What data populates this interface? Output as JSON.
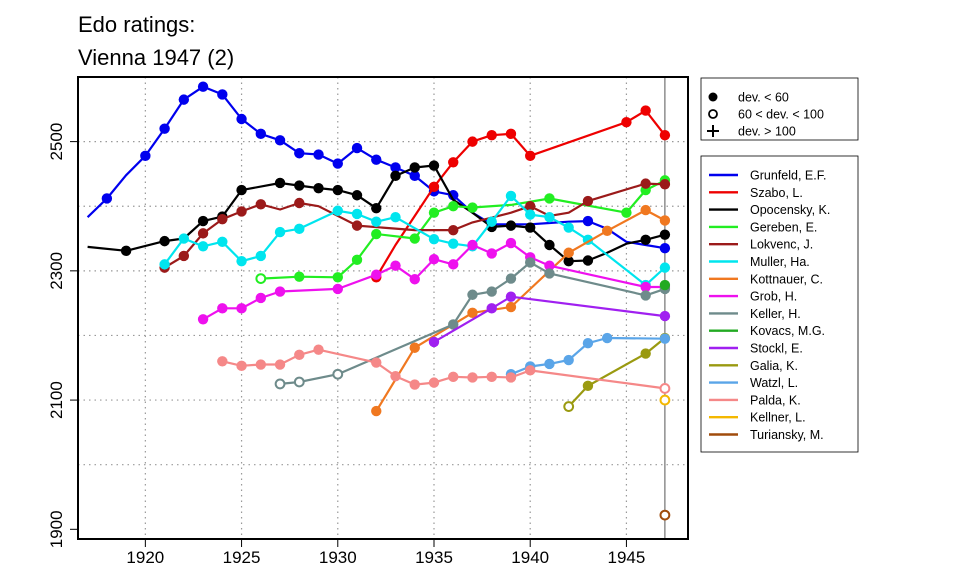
{
  "chart_data": {
    "type": "line",
    "title": [
      "Edo ratings:",
      "Vienna 1947 (2)"
    ],
    "xlabel": "",
    "ylabel": "",
    "xlim": [
      1916.5,
      1948.2
    ],
    "ylim": [
      1885,
      2600
    ],
    "xticks": [
      1920,
      1925,
      1930,
      1935,
      1940,
      1945
    ],
    "yticks": [
      1900,
      2100,
      2300,
      2500
    ],
    "grid_y": [
      2000,
      2100,
      2200,
      2300,
      2400,
      2500,
      2600
    ],
    "grid_x": [
      1920,
      1925,
      1930,
      1935,
      1940,
      1945
    ],
    "grid": "dotted",
    "vline_at": 1947,
    "marker_legend": [
      {
        "marker": "filled",
        "label": "dev. < 60"
      },
      {
        "marker": "open",
        "label": "60 < dev. < 100"
      },
      {
        "marker": "plus",
        "label": "dev. > 100"
      }
    ],
    "series": [
      {
        "name": "Grunfeld, E.F.",
        "color": "#0000ee",
        "x": [
          1917,
          1918,
          1919,
          1920,
          1921,
          1922,
          1923,
          1924,
          1925,
          1926,
          1927,
          1928,
          1929,
          1930,
          1931,
          1932,
          1933,
          1934,
          1935,
          1936,
          1937,
          1938,
          1939,
          1940,
          1941,
          1942,
          1943,
          1944,
          1945,
          1946,
          1947
        ],
        "y": [
          2383,
          2412,
          2448,
          2478,
          2520,
          2565,
          2585,
          2573,
          2535,
          2512,
          2502,
          2482,
          2480,
          2466,
          2490,
          2472,
          2460,
          2447,
          2423,
          2417,
          2390,
          2372,
          2372,
          2372,
          2374,
          2376,
          2377,
          2365,
          2345,
          2340,
          2335
        ],
        "markers": [
          null,
          "filled",
          null,
          "filled",
          "filled",
          "filled",
          "filled",
          "filled",
          "filled",
          "filled",
          "filled",
          "filled",
          "filled",
          "filled",
          "filled",
          "filled",
          "filled",
          "filled",
          "filled",
          "filled",
          null,
          null,
          null,
          null,
          null,
          null,
          "filled",
          null,
          null,
          null,
          "filled"
        ]
      },
      {
        "name": "Szabo, L.",
        "color": "#ee0000",
        "x": [
          1932,
          1933,
          1934,
          1935,
          1936,
          1937,
          1938,
          1939,
          1940,
          1945,
          1946,
          1947
        ],
        "y": [
          2290,
          2340,
          2385,
          2430,
          2468,
          2500,
          2510,
          2512,
          2478,
          2530,
          2548,
          2510
        ],
        "markers": [
          "filled",
          null,
          null,
          "filled",
          "filled",
          "filled",
          "filled",
          "filled",
          "filled",
          "filled",
          "filled",
          "filled"
        ]
      },
      {
        "name": "Opocensky, K.",
        "color": "#000000",
        "x": [
          1917,
          1919,
          1921,
          1922,
          1923,
          1924,
          1925,
          1927,
          1928,
          1929,
          1930,
          1931,
          1932,
          1933,
          1934,
          1935,
          1936,
          1937,
          1938,
          1939,
          1940,
          1941,
          1942,
          1943,
          1944,
          1945,
          1946,
          1947
        ],
        "y": [
          2337,
          2331,
          2346,
          2350,
          2377,
          2384,
          2425,
          2436,
          2432,
          2428,
          2425,
          2417,
          2397,
          2447,
          2460,
          2463,
          2410,
          2390,
          2368,
          2370,
          2367,
          2340,
          2315,
          2316,
          2328,
          2342,
          2348,
          2356
        ],
        "markers": [
          null,
          "filled",
          "filled",
          null,
          "filled",
          "filled",
          "filled",
          "filled",
          "filled",
          "filled",
          "filled",
          "filled",
          "filled",
          "filled",
          "filled",
          "filled",
          null,
          null,
          "filled",
          "filled",
          "filled",
          "filled",
          "filled",
          "filled",
          null,
          null,
          "filled",
          "filled"
        ]
      },
      {
        "name": "Gereben, E.",
        "color": "#22ee22",
        "x": [
          1926,
          1928,
          1930,
          1931,
          1932,
          1934,
          1935,
          1936,
          1937,
          1939,
          1941,
          1945,
          1946,
          1947
        ],
        "y": [
          2288,
          2291,
          2290,
          2317,
          2357,
          2350,
          2390,
          2400,
          2398,
          2402,
          2412,
          2390,
          2425,
          2440
        ],
        "markers": [
          "open",
          "filled",
          "filled",
          "filled",
          "filled",
          "filled",
          "filled",
          "filled",
          "filled",
          null,
          "filled",
          "filled",
          "filled",
          "filled"
        ]
      },
      {
        "name": "Lokvenc, J.",
        "color": "#9b1a1a",
        "x": [
          1921,
          1922,
          1923,
          1924,
          1925,
          1926,
          1927,
          1928,
          1929,
          1931,
          1934,
          1936,
          1937,
          1939,
          1940,
          1941,
          1942,
          1943,
          1946,
          1947
        ],
        "y": [
          2305,
          2323,
          2358,
          2380,
          2392,
          2403,
          2395,
          2405,
          2400,
          2370,
          2363,
          2363,
          2375,
          2390,
          2400,
          2385,
          2390,
          2408,
          2435,
          2434
        ],
        "markers": [
          "filled",
          "filled",
          "filled",
          "filled",
          "filled",
          "filled",
          null,
          "filled",
          null,
          "filled",
          null,
          "filled",
          null,
          null,
          "filled",
          null,
          null,
          "filled",
          "filled",
          "filled"
        ]
      },
      {
        "name": "Muller, Ha.",
        "color": "#00e5ee",
        "x": [
          1921,
          1922,
          1923,
          1924,
          1925,
          1926,
          1927,
          1928,
          1930,
          1931,
          1932,
          1933,
          1935,
          1936,
          1937,
          1938,
          1939,
          1940,
          1941,
          1942,
          1943,
          1946,
          1947
        ],
        "y": [
          2310,
          2350,
          2338,
          2345,
          2315,
          2323,
          2360,
          2365,
          2393,
          2388,
          2376,
          2383,
          2349,
          2342,
          2338,
          2376,
          2416,
          2387,
          2383,
          2367,
          2348,
          2278,
          2305
        ],
        "markers": [
          "filled",
          "filled",
          "filled",
          "filled",
          "filled",
          "filled",
          "filled",
          "filled",
          "filled",
          "filled",
          "filled",
          "filled",
          "filled",
          "filled",
          "filled",
          "filled",
          "filled",
          "filled",
          "filled",
          "filled",
          "filled",
          "filled",
          "filled"
        ]
      },
      {
        "name": "Kottnauer, C.",
        "color": "#f07820",
        "x": [
          1932,
          1934,
          1937,
          1939,
          1942,
          1944,
          1946,
          1947
        ],
        "y": [
          2083,
          2181,
          2235,
          2244,
          2328,
          2362,
          2394,
          2378
        ],
        "markers": [
          "filled",
          "filled",
          "filled",
          "filled",
          "filled",
          "filled",
          "filled",
          "filled"
        ]
      },
      {
        "name": "Grob, H.",
        "color": "#ee11ee",
        "x": [
          1923,
          1924,
          1925,
          1926,
          1927,
          1930,
          1932,
          1933,
          1934,
          1935,
          1936,
          1937,
          1938,
          1939,
          1940,
          1941,
          1946,
          1947
        ],
        "y": [
          2225,
          2242,
          2242,
          2258,
          2268,
          2272,
          2294,
          2308,
          2287,
          2318,
          2310,
          2340,
          2327,
          2343,
          2321,
          2308,
          2275,
          2275
        ],
        "markers": [
          "filled",
          "filled",
          "filled",
          "filled",
          "filled",
          "filled",
          "filled",
          "filled",
          "filled",
          "filled",
          "filled",
          "filled",
          "filled",
          "filled",
          "filled",
          "filled",
          "filled",
          "filled"
        ]
      },
      {
        "name": "Keller, H.",
        "color": "#6e8b8b",
        "x": [
          1927,
          1928,
          1930,
          1936,
          1937,
          1938,
          1939,
          1940,
          1941,
          1946,
          1947
        ],
        "y": [
          2125,
          2128,
          2140,
          2217,
          2263,
          2268,
          2288,
          2313,
          2296,
          2262,
          2272
        ],
        "markers": [
          "open",
          "open",
          "open",
          "filled",
          "filled",
          "filled",
          "filled",
          "filled",
          "filled",
          "filled",
          "filled"
        ]
      },
      {
        "name": "Kovacs, M.G.",
        "color": "#22aa22",
        "x": [
          1947
        ],
        "y": [
          2278
        ],
        "markers": [
          "filled"
        ]
      },
      {
        "name": "Stockl, E.",
        "color": "#a020f0",
        "x": [
          1935,
          1938,
          1939,
          1947
        ],
        "y": [
          2190,
          2242,
          2260,
          2230
        ],
        "markers": [
          "filled",
          "filled",
          "filled",
          "filled"
        ]
      },
      {
        "name": "Galia, K.",
        "color": "#9a9a10",
        "x": [
          1942,
          1943,
          1946,
          1947
        ],
        "y": [
          2090,
          2122,
          2172,
          2196
        ],
        "markers": [
          "open",
          "filled",
          "filled",
          "filled"
        ]
      },
      {
        "name": "Watzl, L.",
        "color": "#5aa5e8",
        "x": [
          1939,
          1940,
          1941,
          1942,
          1943,
          1944,
          1947
        ],
        "y": [
          2140,
          2152,
          2156,
          2162,
          2188,
          2196,
          2195
        ],
        "markers": [
          "filled",
          "filled",
          "filled",
          "filled",
          "filled",
          "filled",
          "filled"
        ]
      },
      {
        "name": "Palda, K.",
        "color": "#f58888",
        "x": [
          1924,
          1925,
          1926,
          1927,
          1928,
          1929,
          1932,
          1933,
          1934,
          1935,
          1936,
          1937,
          1938,
          1939,
          1940,
          1947
        ],
        "y": [
          2160,
          2153,
          2155,
          2155,
          2170,
          2178,
          2158,
          2137,
          2124,
          2127,
          2136,
          2135,
          2136,
          2135,
          2146,
          2118
        ],
        "markers": [
          "filled",
          "filled",
          "filled",
          "filled",
          "filled",
          "filled",
          "filled",
          "filled",
          "filled",
          "filled",
          "filled",
          "filled",
          "filled",
          "filled",
          "filled",
          "open"
        ]
      },
      {
        "name": "Kellner, L.",
        "color": "#f4b800",
        "x": [
          1947
        ],
        "y": [
          2100
        ],
        "markers": [
          "open"
        ]
      },
      {
        "name": "Turiansky, M.",
        "color": "#a04c0c",
        "x": [
          1947
        ],
        "y": [
          1922
        ],
        "markers": [
          "open"
        ]
      }
    ]
  }
}
